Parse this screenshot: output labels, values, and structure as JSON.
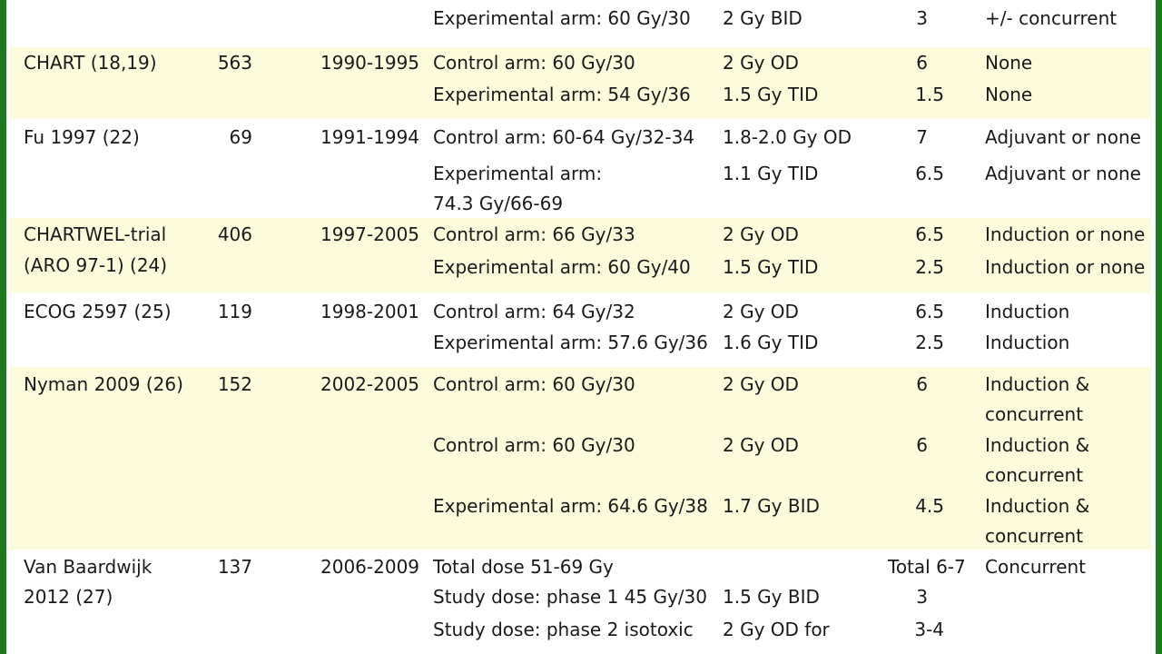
{
  "rows": [
    {
      "study": "",
      "n": "",
      "years": "",
      "arms": [
        {
          "arm": "Experimental arm: 60 Gy/30",
          "fraction": "2 Gy BID",
          "weeks": "3",
          "chemo": "+/- concurrent"
        }
      ]
    },
    {
      "study": "CHART (18,19)",
      "n": "563",
      "years": "1990-1995",
      "arms": [
        {
          "arm": "Control arm: 60 Gy/30",
          "fraction": "2 Gy OD",
          "weeks": "6",
          "chemo": "None"
        },
        {
          "arm": "Experimental arm: 54 Gy/36",
          "fraction": "1.5 Gy TID",
          "weeks": "1.5",
          "chemo": "None"
        }
      ]
    },
    {
      "study": "Fu 1997 (22)",
      "n": "69",
      "years": "1991-1994",
      "arms": [
        {
          "arm": "Control arm: 60-64 Gy/32-34",
          "fraction": "1.8-2.0 Gy OD",
          "weeks": "7",
          "chemo": "Adjuvant or none"
        },
        {
          "arm": "Experimental arm:",
          "arm2": "74.3 Gy/66-69",
          "fraction": "1.1 Gy TID",
          "weeks": "6.5",
          "chemo": "Adjuvant or none"
        }
      ]
    },
    {
      "study": "CHARTWEL-trial",
      "study2": "(ARO 97-1) (24)",
      "n": "406",
      "years": "1997-2005",
      "arms": [
        {
          "arm": "Control arm: 66 Gy/33",
          "fraction": "2 Gy OD",
          "weeks": "6.5",
          "chemo": "Induction or none"
        },
        {
          "arm": "Experimental arm: 60 Gy/40",
          "fraction": "1.5 Gy TID",
          "weeks": "2.5",
          "chemo": "Induction or none"
        }
      ]
    },
    {
      "study": "ECOG 2597 (25)",
      "n": "119",
      "years": "1998-2001",
      "arms": [
        {
          "arm": "Control arm: 64 Gy/32",
          "fraction": "2 Gy OD",
          "weeks": "6.5",
          "chemo": "Induction"
        },
        {
          "arm": "Experimental arm: 57.6 Gy/36",
          "fraction": "1.6 Gy TID",
          "weeks": "2.5",
          "chemo": "Induction"
        }
      ]
    },
    {
      "study": "Nyman 2009 (26)",
      "n": "152",
      "years": "2002-2005",
      "arms": [
        {
          "arm": "Control arm: 60 Gy/30",
          "fraction": "2 Gy OD",
          "weeks": "6",
          "chemo": "Induction &",
          "chemo2": "concurrent"
        },
        {
          "arm": "Control arm: 60 Gy/30",
          "fraction": "2 Gy OD",
          "weeks": "6",
          "chemo": "Induction &",
          "chemo2": "concurrent"
        },
        {
          "arm": "Experimental arm: 64.6 Gy/38",
          "fraction": "1.7 Gy BID",
          "weeks": "4.5",
          "chemo": "Induction &",
          "chemo2": "concurrent"
        }
      ]
    },
    {
      "study": "Van Baardwijk",
      "study2": "2012 (27)",
      "n": "137",
      "years": "2006-2009",
      "arms": [
        {
          "arm": "Total dose 51-69 Gy",
          "fraction": "",
          "weeks": "Total 6-7",
          "chemo": "Concurrent"
        },
        {
          "arm": "Study dose: phase 1 45 Gy/30",
          "fraction": "1.5 Gy BID",
          "weeks": "3",
          "chemo": ""
        },
        {
          "arm": "Study dose: phase 2 isotoxic",
          "fraction": "2 Gy OD for",
          "weeks": "3-4",
          "chemo": ""
        }
      ]
    }
  ]
}
